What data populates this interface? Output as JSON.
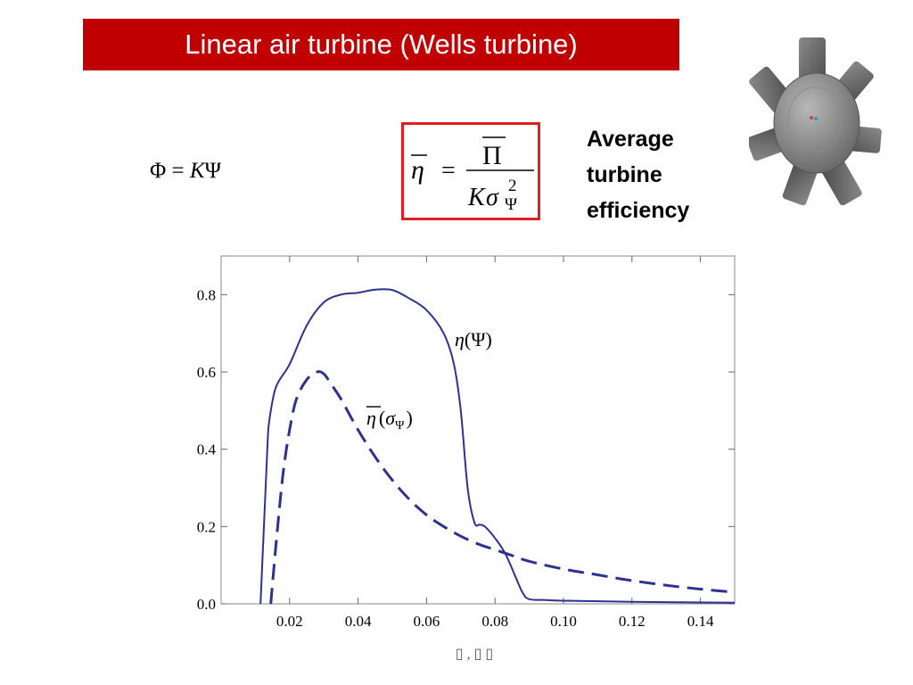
{
  "slide": {
    "title": "Linear air turbine (Wells turbine)",
    "eq_relation": {
      "lhs": "Φ",
      "equals": "=",
      "k": "K",
      "rhs": "Ψ"
    },
    "eq_efficiency": {
      "lhs": "η",
      "equals": "=",
      "numerator": "Π",
      "den_k": "K",
      "den_sigma": "σ",
      "den_sub": "Ψ",
      "den_sup": "2"
    },
    "efficiency_text": [
      "Average",
      "turbine",
      "efficiency"
    ],
    "xlabel_glyph": "▯ , ▯ ▯"
  },
  "colors": {
    "title_bg": "#c00000",
    "title_text": "#ffffff",
    "box_border": "#e02020",
    "curve": "#2e3192",
    "turbine_body": "#6b6b6b"
  },
  "icons": {
    "turbine": "wells-turbine-rotor-icon"
  },
  "chart_data": {
    "type": "line",
    "title": "",
    "xlabel": "",
    "ylabel": "",
    "xlim": [
      0.0,
      0.15
    ],
    "ylim": [
      0.0,
      0.9
    ],
    "xticks": [
      0.02,
      0.04,
      0.06,
      0.08,
      0.1,
      0.12,
      0.14
    ],
    "xtick_labels": [
      "0.02",
      "0.04",
      "0.06",
      "0.08",
      "0.10",
      "0.12",
      "0.14"
    ],
    "yticks": [
      0.0,
      0.2,
      0.4,
      0.6,
      0.8
    ],
    "ytick_labels": [
      "0.0",
      "0.2",
      "0.4",
      "0.6",
      "0.8"
    ],
    "grid": false,
    "series": [
      {
        "style": "solid",
        "label_parts": {
          "sym": "η",
          "open": "(",
          "arg": "Ψ",
          "close": ")"
        },
        "x": [
          0.0115,
          0.0125,
          0.0135,
          0.014,
          0.016,
          0.02,
          0.025,
          0.03,
          0.035,
          0.04,
          0.045,
          0.05,
          0.055,
          0.06,
          0.065,
          0.068,
          0.07,
          0.072,
          0.074,
          0.0755,
          0.077,
          0.08,
          0.083,
          0.086,
          0.088,
          0.09,
          0.095,
          0.1,
          0.12,
          0.15
        ],
        "y": [
          0.0,
          0.2,
          0.4,
          0.47,
          0.56,
          0.62,
          0.72,
          0.78,
          0.8,
          0.805,
          0.813,
          0.812,
          0.79,
          0.76,
          0.7,
          0.62,
          0.5,
          0.3,
          0.21,
          0.205,
          0.2,
          0.17,
          0.13,
          0.07,
          0.03,
          0.012,
          0.01,
          0.008,
          0.005,
          0.003
        ]
      },
      {
        "style": "dashed",
        "label_parts": {
          "sym": "η",
          "open": "(",
          "arg": "σ",
          "sub": "Ψ",
          "close": ")"
        },
        "x": [
          0.0145,
          0.016,
          0.018,
          0.02,
          0.022,
          0.025,
          0.028,
          0.03,
          0.032,
          0.035,
          0.04,
          0.045,
          0.05,
          0.055,
          0.06,
          0.065,
          0.07,
          0.075,
          0.08,
          0.085,
          0.09,
          0.1,
          0.11,
          0.12,
          0.13,
          0.14,
          0.15
        ],
        "y": [
          0.0,
          0.15,
          0.33,
          0.45,
          0.53,
          0.58,
          0.6,
          0.595,
          0.57,
          0.53,
          0.45,
          0.38,
          0.32,
          0.27,
          0.23,
          0.2,
          0.175,
          0.155,
          0.14,
          0.125,
          0.11,
          0.09,
          0.075,
          0.06,
          0.048,
          0.038,
          0.03
        ]
      }
    ]
  }
}
